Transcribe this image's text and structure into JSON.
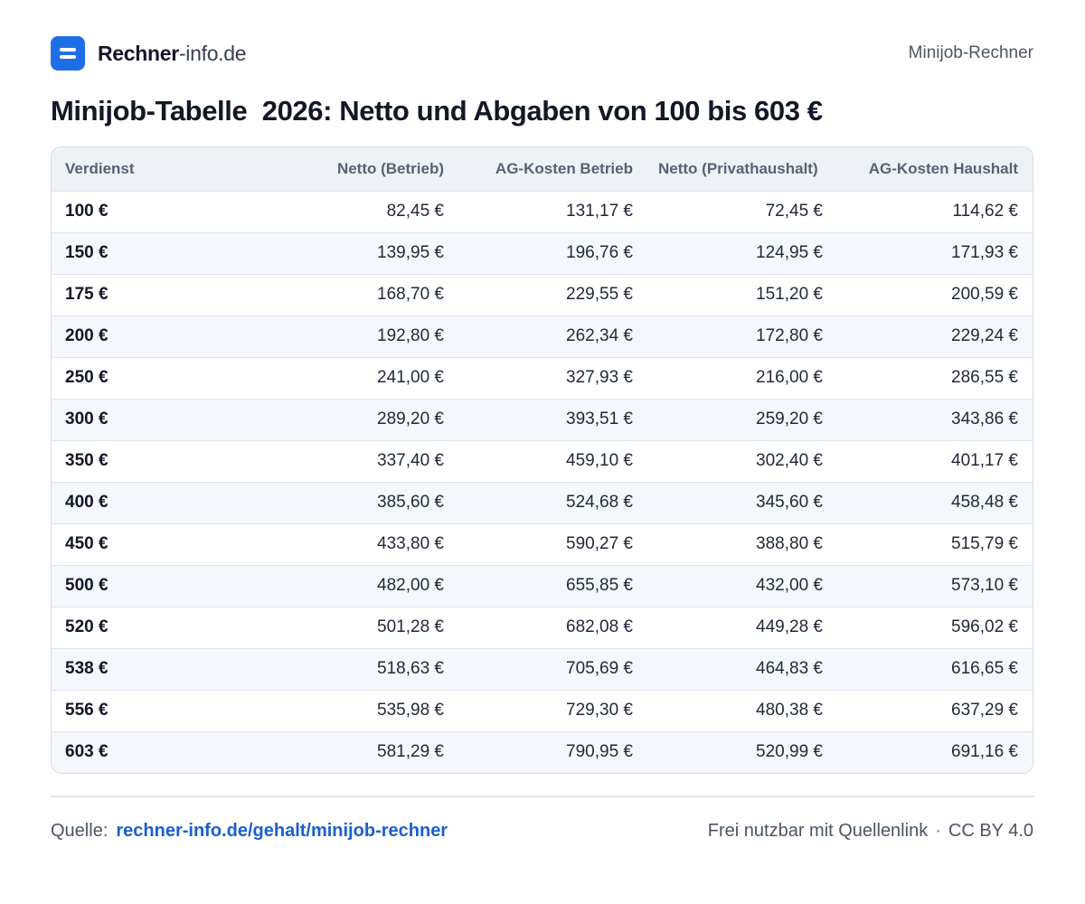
{
  "header": {
    "brand_strong": "Rechner",
    "brand_light": "-info.de",
    "right_label": "Minijob-Rechner"
  },
  "title": "Minijob-Tabelle  2026: Netto und Abgaben von 100 bis 603 €",
  "table": {
    "columns": [
      "Verdienst",
      "Netto (Betrieb)",
      "AG-Kosten Betrieb",
      "Netto (Privathaushalt)",
      "AG-Kosten Haushalt"
    ],
    "rows": [
      [
        "100 €",
        "82,45 €",
        "131,17 €",
        "72,45 €",
        "114,62 €"
      ],
      [
        "150 €",
        "139,95 €",
        "196,76 €",
        "124,95 €",
        "171,93 €"
      ],
      [
        "175 €",
        "168,70 €",
        "229,55 €",
        "151,20 €",
        "200,59 €"
      ],
      [
        "200 €",
        "192,80 €",
        "262,34 €",
        "172,80 €",
        "229,24 €"
      ],
      [
        "250 €",
        "241,00 €",
        "327,93 €",
        "216,00 €",
        "286,55 €"
      ],
      [
        "300 €",
        "289,20 €",
        "393,51 €",
        "259,20 €",
        "343,86 €"
      ],
      [
        "350 €",
        "337,40 €",
        "459,10 €",
        "302,40 €",
        "401,17 €"
      ],
      [
        "400 €",
        "385,60 €",
        "524,68 €",
        "345,60 €",
        "458,48 €"
      ],
      [
        "450 €",
        "433,80 €",
        "590,27 €",
        "388,80 €",
        "515,79 €"
      ],
      [
        "500 €",
        "482,00 €",
        "655,85 €",
        "432,00 €",
        "573,10 €"
      ],
      [
        "520 €",
        "501,28 €",
        "682,08 €",
        "449,28 €",
        "596,02 €"
      ],
      [
        "538 €",
        "518,63 €",
        "705,69 €",
        "464,83 €",
        "616,65 €"
      ],
      [
        "556 €",
        "535,98 €",
        "729,30 €",
        "480,38 €",
        "637,29 €"
      ],
      [
        "603 €",
        "581,29 €",
        "790,95 €",
        "520,99 €",
        "691,16 €"
      ]
    ]
  },
  "footer": {
    "source_label": "Quelle:",
    "source_link": "rechner-info.de/gehalt/minijob-rechner",
    "license_text": "Frei nutzbar mit Quellenlink",
    "separator": "·",
    "license": "CC BY 4.0"
  },
  "colors": {
    "accent": "#1e6fe6",
    "link": "#1a5fd0",
    "header_bg": "#eef2f7",
    "stripe_bg": "#f4f7fb"
  }
}
